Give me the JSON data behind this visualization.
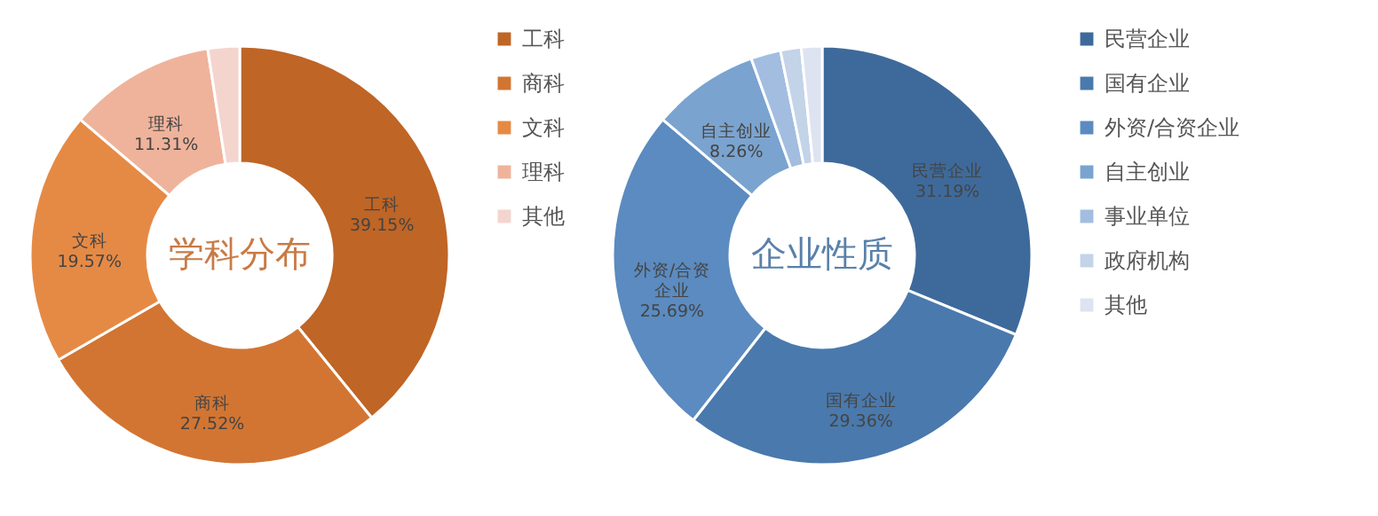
{
  "chart_data": [
    {
      "type": "donut",
      "title": "学科分布",
      "legend": "right",
      "categories": [
        "工科",
        "商科",
        "文科",
        "理科",
        "其他"
      ],
      "values": [
        39.15,
        27.52,
        19.57,
        11.31,
        2.45
      ],
      "colors": [
        "#bf6526",
        "#d27533",
        "#e58a45",
        "#efb39b",
        "#f4d5ce"
      ],
      "value_labels": [
        "39.15%",
        "27.52%",
        "19.57%",
        "11.31%",
        null
      ]
    },
    {
      "type": "donut",
      "title": "企业性质",
      "legend": "right",
      "categories": [
        "民营企业",
        "国有企业",
        "外资/合资企业",
        "自主创业",
        "事业单位",
        "政府机构",
        "其他"
      ],
      "values": [
        31.19,
        29.36,
        25.69,
        8.26,
        2.3,
        1.6,
        1.6
      ],
      "colors": [
        "#3e6a9b",
        "#4a79ad",
        "#5b8bc0",
        "#7aa3cf",
        "#a2bde0",
        "#c3d3e8",
        "#dde3f0"
      ],
      "value_labels": [
        "31.19%",
        "29.36%",
        "25.69%",
        "8.26%",
        null,
        null,
        null
      ]
    }
  ]
}
